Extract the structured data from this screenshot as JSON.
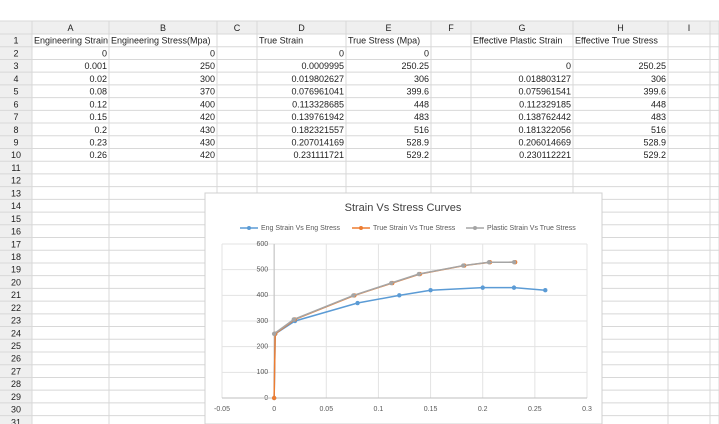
{
  "sheet": {
    "columns": [
      "A",
      "B",
      "C",
      "D",
      "E",
      "F",
      "G",
      "H",
      "I"
    ],
    "row_numbers": [
      1,
      2,
      3,
      4,
      5,
      6,
      7,
      8,
      9,
      10,
      11,
      12,
      13,
      14,
      15,
      16,
      17,
      18,
      19,
      20,
      21,
      22,
      23,
      24,
      25,
      26,
      27,
      28,
      29,
      30,
      31
    ],
    "cells": [
      [
        "Engineering Strain",
        "Engineering Stress(Mpa)",
        null,
        "True Strain",
        "True Stress (Mpa)",
        null,
        "Effective Plastic Strain",
        "Effective True Stress",
        null
      ],
      [
        0,
        0,
        null,
        0,
        0,
        null,
        null,
        null,
        null
      ],
      [
        0.001,
        250,
        null,
        0.0009995,
        250.25,
        null,
        0,
        250.25,
        null
      ],
      [
        0.02,
        300,
        null,
        0.019802627,
        306,
        null,
        0.018803127,
        306,
        null
      ],
      [
        0.08,
        370,
        null,
        0.076961041,
        399.6,
        null,
        0.075961541,
        399.6,
        null
      ],
      [
        0.12,
        400,
        null,
        0.113328685,
        448,
        null,
        0.112329185,
        448,
        null
      ],
      [
        0.15,
        420,
        null,
        0.139761942,
        483,
        null,
        0.138762442,
        483,
        null
      ],
      [
        0.2,
        430,
        null,
        0.182321557,
        516,
        null,
        0.181322056,
        516,
        null
      ],
      [
        0.23,
        430,
        null,
        0.207014169,
        528.9,
        null,
        0.206014669,
        528.9,
        null
      ],
      [
        0.26,
        420,
        null,
        0.231111721,
        529.2,
        null,
        0.230112221,
        529.2,
        null
      ]
    ]
  },
  "chart_data": {
    "type": "scatter",
    "title": "Strain Vs Stress Curves",
    "xlim": [
      -0.05,
      0.3
    ],
    "xticks": [
      -0.05,
      0,
      0.05,
      0.1,
      0.15,
      0.2,
      0.25,
      0.3
    ],
    "ylim": [
      0,
      600
    ],
    "yticks": [
      0,
      100,
      200,
      300,
      400,
      500,
      600
    ],
    "grid": true,
    "series": [
      {
        "name": "Eng Strain Vs Eng Stress",
        "color": "#5b9bd5",
        "x": [
          0,
          0.001,
          0.02,
          0.08,
          0.12,
          0.15,
          0.2,
          0.23,
          0.26
        ],
        "values": [
          0,
          250,
          300,
          370,
          400,
          420,
          430,
          430,
          420
        ]
      },
      {
        "name": "True Strain Vs True Stress",
        "color": "#ed7d31",
        "x": [
          0,
          0.0009995,
          0.019802627,
          0.076961041,
          0.113328685,
          0.139761942,
          0.182321557,
          0.207014169,
          0.231111721
        ],
        "values": [
          0,
          250.25,
          306,
          399.6,
          448,
          483,
          516,
          528.9,
          529.2
        ]
      },
      {
        "name": "Plastic Strain Vs True Stress",
        "color": "#a5a5a5",
        "x": [
          0,
          0.018803127,
          0.075961541,
          0.112329185,
          0.138762442,
          0.181322056,
          0.206014669,
          0.230112221
        ],
        "values": [
          250.25,
          306,
          399.6,
          448,
          483,
          516,
          528.9,
          529.2
        ]
      }
    ]
  }
}
